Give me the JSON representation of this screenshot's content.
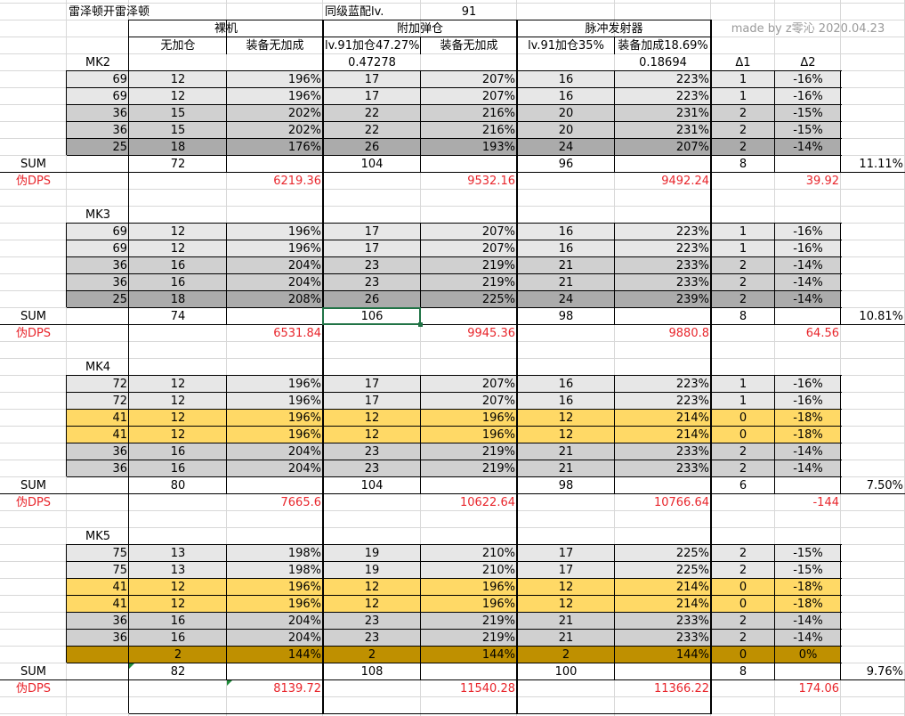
{
  "header": {
    "title": "雷泽顿开雷泽顿",
    "blue_level_label": "同级蓝配lv.",
    "blue_level_value": "91",
    "watermark": "made by z零沁 2020.04.23"
  },
  "groups": [
    {
      "name": "裸机",
      "cols": [
        "无加仓",
        "装备无加成"
      ]
    },
    {
      "name": "附加弹仓",
      "cols": [
        "lv.91加仓47.27%",
        "装备无加成"
      ],
      "factor": "0.47278"
    },
    {
      "name": "脉冲发射器",
      "cols": [
        "lv.91加仓35%",
        "装备加成18.69%"
      ],
      "factor": "0.18694"
    }
  ],
  "delta_labels": [
    "Δ1",
    "Δ2"
  ],
  "sum_label": "SUM",
  "dps_label": "伪DPS",
  "sections": [
    {
      "name": "MK2",
      "rows": [
        {
          "v": "69",
          "a": "12",
          "b": "196%",
          "c": "17",
          "d": "207%",
          "e": "16",
          "f": "223%",
          "d1": "1",
          "d2": "-16%"
        },
        {
          "v": "69",
          "a": "12",
          "b": "196%",
          "c": "17",
          "d": "207%",
          "e": "16",
          "f": "223%",
          "d1": "1",
          "d2": "-16%"
        },
        {
          "v": "36",
          "a": "15",
          "b": "202%",
          "c": "22",
          "d": "216%",
          "e": "20",
          "f": "231%",
          "d1": "2",
          "d2": "-15%"
        },
        {
          "v": "36",
          "a": "15",
          "b": "202%",
          "c": "22",
          "d": "216%",
          "e": "20",
          "f": "231%",
          "d1": "2",
          "d2": "-15%"
        },
        {
          "v": "25",
          "a": "18",
          "b": "176%",
          "c": "26",
          "d": "193%",
          "e": "24",
          "f": "207%",
          "d1": "2",
          "d2": "-14%"
        }
      ],
      "sum": {
        "a": "72",
        "c": "104",
        "e": "96",
        "d1": "8",
        "pct": "11.11%"
      },
      "dps": {
        "b": "6219.36",
        "d": "9532.16",
        "f": "9492.24",
        "d2": "39.92"
      }
    },
    {
      "name": "MK3",
      "rows": [
        {
          "v": "69",
          "a": "12",
          "b": "196%",
          "c": "17",
          "d": "207%",
          "e": "16",
          "f": "223%",
          "d1": "1",
          "d2": "-16%"
        },
        {
          "v": "69",
          "a": "12",
          "b": "196%",
          "c": "17",
          "d": "207%",
          "e": "16",
          "f": "223%",
          "d1": "1",
          "d2": "-16%"
        },
        {
          "v": "36",
          "a": "16",
          "b": "204%",
          "c": "23",
          "d": "219%",
          "e": "21",
          "f": "233%",
          "d1": "2",
          "d2": "-14%"
        },
        {
          "v": "36",
          "a": "16",
          "b": "204%",
          "c": "23",
          "d": "219%",
          "e": "21",
          "f": "233%",
          "d1": "2",
          "d2": "-14%"
        },
        {
          "v": "25",
          "a": "18",
          "b": "208%",
          "c": "26",
          "d": "225%",
          "e": "24",
          "f": "239%",
          "d1": "2",
          "d2": "-14%"
        }
      ],
      "sum": {
        "a": "74",
        "c": "106",
        "e": "98",
        "d1": "8",
        "pct": "10.81%"
      },
      "dps": {
        "b": "6531.84",
        "d": "9945.36",
        "f": "9880.8",
        "d2": "64.56"
      }
    },
    {
      "name": "MK4",
      "rows": [
        {
          "v": "72",
          "a": "12",
          "b": "196%",
          "c": "17",
          "d": "207%",
          "e": "16",
          "f": "223%",
          "d1": "1",
          "d2": "-16%"
        },
        {
          "v": "72",
          "a": "12",
          "b": "196%",
          "c": "17",
          "d": "207%",
          "e": "16",
          "f": "223%",
          "d1": "1",
          "d2": "-16%"
        },
        {
          "v": "41",
          "a": "12",
          "b": "196%",
          "c": "12",
          "d": "196%",
          "e": "12",
          "f": "214%",
          "d1": "0",
          "d2": "-18%"
        },
        {
          "v": "41",
          "a": "12",
          "b": "196%",
          "c": "12",
          "d": "196%",
          "e": "12",
          "f": "214%",
          "d1": "0",
          "d2": "-18%"
        },
        {
          "v": "36",
          "a": "16",
          "b": "204%",
          "c": "23",
          "d": "219%",
          "e": "21",
          "f": "233%",
          "d1": "2",
          "d2": "-14%"
        },
        {
          "v": "36",
          "a": "16",
          "b": "204%",
          "c": "23",
          "d": "219%",
          "e": "21",
          "f": "233%",
          "d1": "2",
          "d2": "-14%"
        }
      ],
      "sum": {
        "a": "80",
        "c": "104",
        "e": "98",
        "d1": "6",
        "pct": "7.50%"
      },
      "dps": {
        "b": "7665.6",
        "d": "10622.64",
        "f": "10766.64",
        "d2": "-144"
      }
    },
    {
      "name": "MK5",
      "rows": [
        {
          "v": "75",
          "a": "13",
          "b": "198%",
          "c": "19",
          "d": "210%",
          "e": "17",
          "f": "225%",
          "d1": "2",
          "d2": "-15%"
        },
        {
          "v": "75",
          "a": "13",
          "b": "198%",
          "c": "19",
          "d": "210%",
          "e": "17",
          "f": "225%",
          "d1": "2",
          "d2": "-15%"
        },
        {
          "v": "41",
          "a": "12",
          "b": "196%",
          "c": "12",
          "d": "196%",
          "e": "12",
          "f": "214%",
          "d1": "0",
          "d2": "-18%"
        },
        {
          "v": "41",
          "a": "12",
          "b": "196%",
          "c": "12",
          "d": "196%",
          "e": "12",
          "f": "214%",
          "d1": "0",
          "d2": "-18%"
        },
        {
          "v": "36",
          "a": "16",
          "b": "204%",
          "c": "23",
          "d": "219%",
          "e": "21",
          "f": "233%",
          "d1": "2",
          "d2": "-14%"
        },
        {
          "v": "36",
          "a": "16",
          "b": "204%",
          "c": "23",
          "d": "219%",
          "e": "21",
          "f": "233%",
          "d1": "2",
          "d2": "-14%"
        },
        {
          "v": "",
          "a": "2",
          "b": "144%",
          "c": "2",
          "d": "144%",
          "e": "2",
          "f": "144%",
          "d1": "0",
          "d2": "0%"
        }
      ],
      "sum": {
        "a": "82",
        "c": "108",
        "e": "100",
        "d1": "8",
        "pct": "9.76%"
      },
      "dps": {
        "b": "8139.72",
        "d": "11540.28",
        "f": "11366.22",
        "d2": "174.06"
      }
    }
  ],
  "colors": {
    "light_gray": "#e7e7e7",
    "mid_gray": "#d0d0d0",
    "dark_gray": "#ababab",
    "yellow": "#ffd966",
    "gold": "#bf9000",
    "dps_red": "#e8262c",
    "selection_green": "#217346"
  }
}
